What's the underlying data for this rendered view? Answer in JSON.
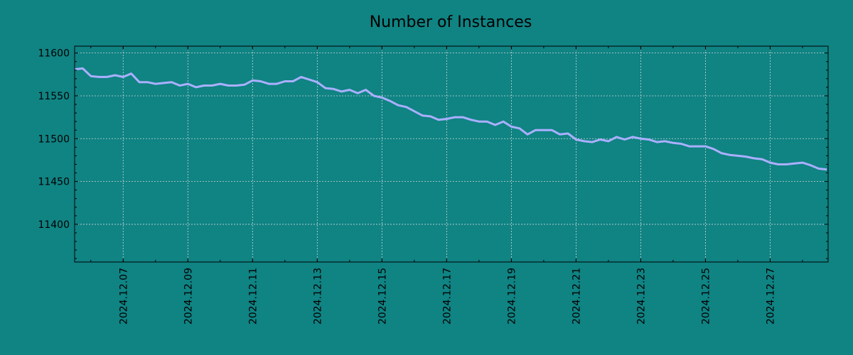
{
  "chart_data": {
    "type": "line",
    "title": "Number of Instances",
    "xlabel": "",
    "ylabel": "",
    "x_range": [
      "2024-12-05T12:00",
      "2024-12-28T19:00"
    ],
    "ylim": [
      11356,
      11608
    ],
    "x_ticks": [
      "2024.12.07",
      "2024.12.09",
      "2024.12.11",
      "2024.12.13",
      "2024.12.15",
      "2024.12.17",
      "2024.12.19",
      "2024.12.21",
      "2024.12.23",
      "2024.12.25",
      "2024.12.27"
    ],
    "y_ticks": [
      11400,
      11450,
      11500,
      11550,
      11600
    ],
    "grid": true,
    "series": [
      {
        "color": "#aab0ff",
        "points": [
          [
            "2024-12-05T12:00",
            11581
          ],
          [
            "2024-12-05T18:00",
            11582
          ],
          [
            "2024-12-06T00:00",
            11573
          ],
          [
            "2024-12-06T06:00",
            11572
          ],
          [
            "2024-12-06T12:00",
            11572
          ],
          [
            "2024-12-06T18:00",
            11574
          ],
          [
            "2024-12-07T00:00",
            11572
          ],
          [
            "2024-12-07T06:00",
            11576
          ],
          [
            "2024-12-07T12:00",
            11566
          ],
          [
            "2024-12-07T18:00",
            11566
          ],
          [
            "2024-12-08T00:00",
            11564
          ],
          [
            "2024-12-08T06:00",
            11565
          ],
          [
            "2024-12-08T12:00",
            11566
          ],
          [
            "2024-12-08T18:00",
            11562
          ],
          [
            "2024-12-09T00:00",
            11564
          ],
          [
            "2024-12-09T06:00",
            11560
          ],
          [
            "2024-12-09T12:00",
            11562
          ],
          [
            "2024-12-09T18:00",
            11562
          ],
          [
            "2024-12-10T00:00",
            11564
          ],
          [
            "2024-12-10T06:00",
            11562
          ],
          [
            "2024-12-10T12:00",
            11562
          ],
          [
            "2024-12-10T18:00",
            11563
          ],
          [
            "2024-12-11T00:00",
            11568
          ],
          [
            "2024-12-11T06:00",
            11567
          ],
          [
            "2024-12-11T12:00",
            11564
          ],
          [
            "2024-12-11T18:00",
            11564
          ],
          [
            "2024-12-12T00:00",
            11567
          ],
          [
            "2024-12-12T06:00",
            11567
          ],
          [
            "2024-12-12T12:00",
            11572
          ],
          [
            "2024-12-12T18:00",
            11569
          ],
          [
            "2024-12-13T00:00",
            11566
          ],
          [
            "2024-12-13T06:00",
            11559
          ],
          [
            "2024-12-13T12:00",
            11558
          ],
          [
            "2024-12-13T18:00",
            11555
          ],
          [
            "2024-12-14T00:00",
            11557
          ],
          [
            "2024-12-14T06:00",
            11553
          ],
          [
            "2024-12-14T12:00",
            11557
          ],
          [
            "2024-12-14T18:00",
            11550
          ],
          [
            "2024-12-15T00:00",
            11548
          ],
          [
            "2024-12-15T06:00",
            11544
          ],
          [
            "2024-12-15T12:00",
            11539
          ],
          [
            "2024-12-15T18:00",
            11537
          ],
          [
            "2024-12-16T00:00",
            11532
          ],
          [
            "2024-12-16T06:00",
            11527
          ],
          [
            "2024-12-16T12:00",
            11526
          ],
          [
            "2024-12-16T18:00",
            11522
          ],
          [
            "2024-12-17T00:00",
            11523
          ],
          [
            "2024-12-17T06:00",
            11525
          ],
          [
            "2024-12-17T12:00",
            11525
          ],
          [
            "2024-12-17T18:00",
            11522
          ],
          [
            "2024-12-18T00:00",
            11520
          ],
          [
            "2024-12-18T06:00",
            11520
          ],
          [
            "2024-12-18T12:00",
            11516
          ],
          [
            "2024-12-18T18:00",
            11520
          ],
          [
            "2024-12-19T00:00",
            11514
          ],
          [
            "2024-12-19T06:00",
            11512
          ],
          [
            "2024-12-19T12:00",
            11505
          ],
          [
            "2024-12-19T18:00",
            11510
          ],
          [
            "2024-12-20T00:00",
            11510
          ],
          [
            "2024-12-20T06:00",
            11510
          ],
          [
            "2024-12-20T12:00",
            11505
          ],
          [
            "2024-12-20T18:00",
            11506
          ],
          [
            "2024-12-21T00:00",
            11499
          ],
          [
            "2024-12-21T06:00",
            11497
          ],
          [
            "2024-12-21T12:00",
            11496
          ],
          [
            "2024-12-21T18:00",
            11499
          ],
          [
            "2024-12-22T00:00",
            11497
          ],
          [
            "2024-12-22T06:00",
            11502
          ],
          [
            "2024-12-22T12:00",
            11499
          ],
          [
            "2024-12-22T18:00",
            11502
          ],
          [
            "2024-12-23T00:00",
            11500
          ],
          [
            "2024-12-23T06:00",
            11499
          ],
          [
            "2024-12-23T12:00",
            11496
          ],
          [
            "2024-12-23T18:00",
            11497
          ],
          [
            "2024-12-24T00:00",
            11495
          ],
          [
            "2024-12-24T06:00",
            11494
          ],
          [
            "2024-12-24T12:00",
            11491
          ],
          [
            "2024-12-24T18:00",
            11491
          ],
          [
            "2024-12-25T00:00",
            11491
          ],
          [
            "2024-12-25T06:00",
            11488
          ],
          [
            "2024-12-25T12:00",
            11483
          ],
          [
            "2024-12-25T18:00",
            11481
          ],
          [
            "2024-12-26T00:00",
            11480
          ],
          [
            "2024-12-26T06:00",
            11479
          ],
          [
            "2024-12-26T12:00",
            11477
          ],
          [
            "2024-12-26T18:00",
            11476
          ],
          [
            "2024-12-27T00:00",
            11472
          ],
          [
            "2024-12-27T06:00",
            11470
          ],
          [
            "2024-12-27T12:00",
            11470
          ],
          [
            "2024-12-27T18:00",
            11471
          ],
          [
            "2024-12-28T00:00",
            11472
          ],
          [
            "2024-12-28T06:00",
            11469
          ],
          [
            "2024-12-28T12:00",
            11465
          ],
          [
            "2024-12-28T18:00",
            11464
          ]
        ]
      }
    ]
  }
}
